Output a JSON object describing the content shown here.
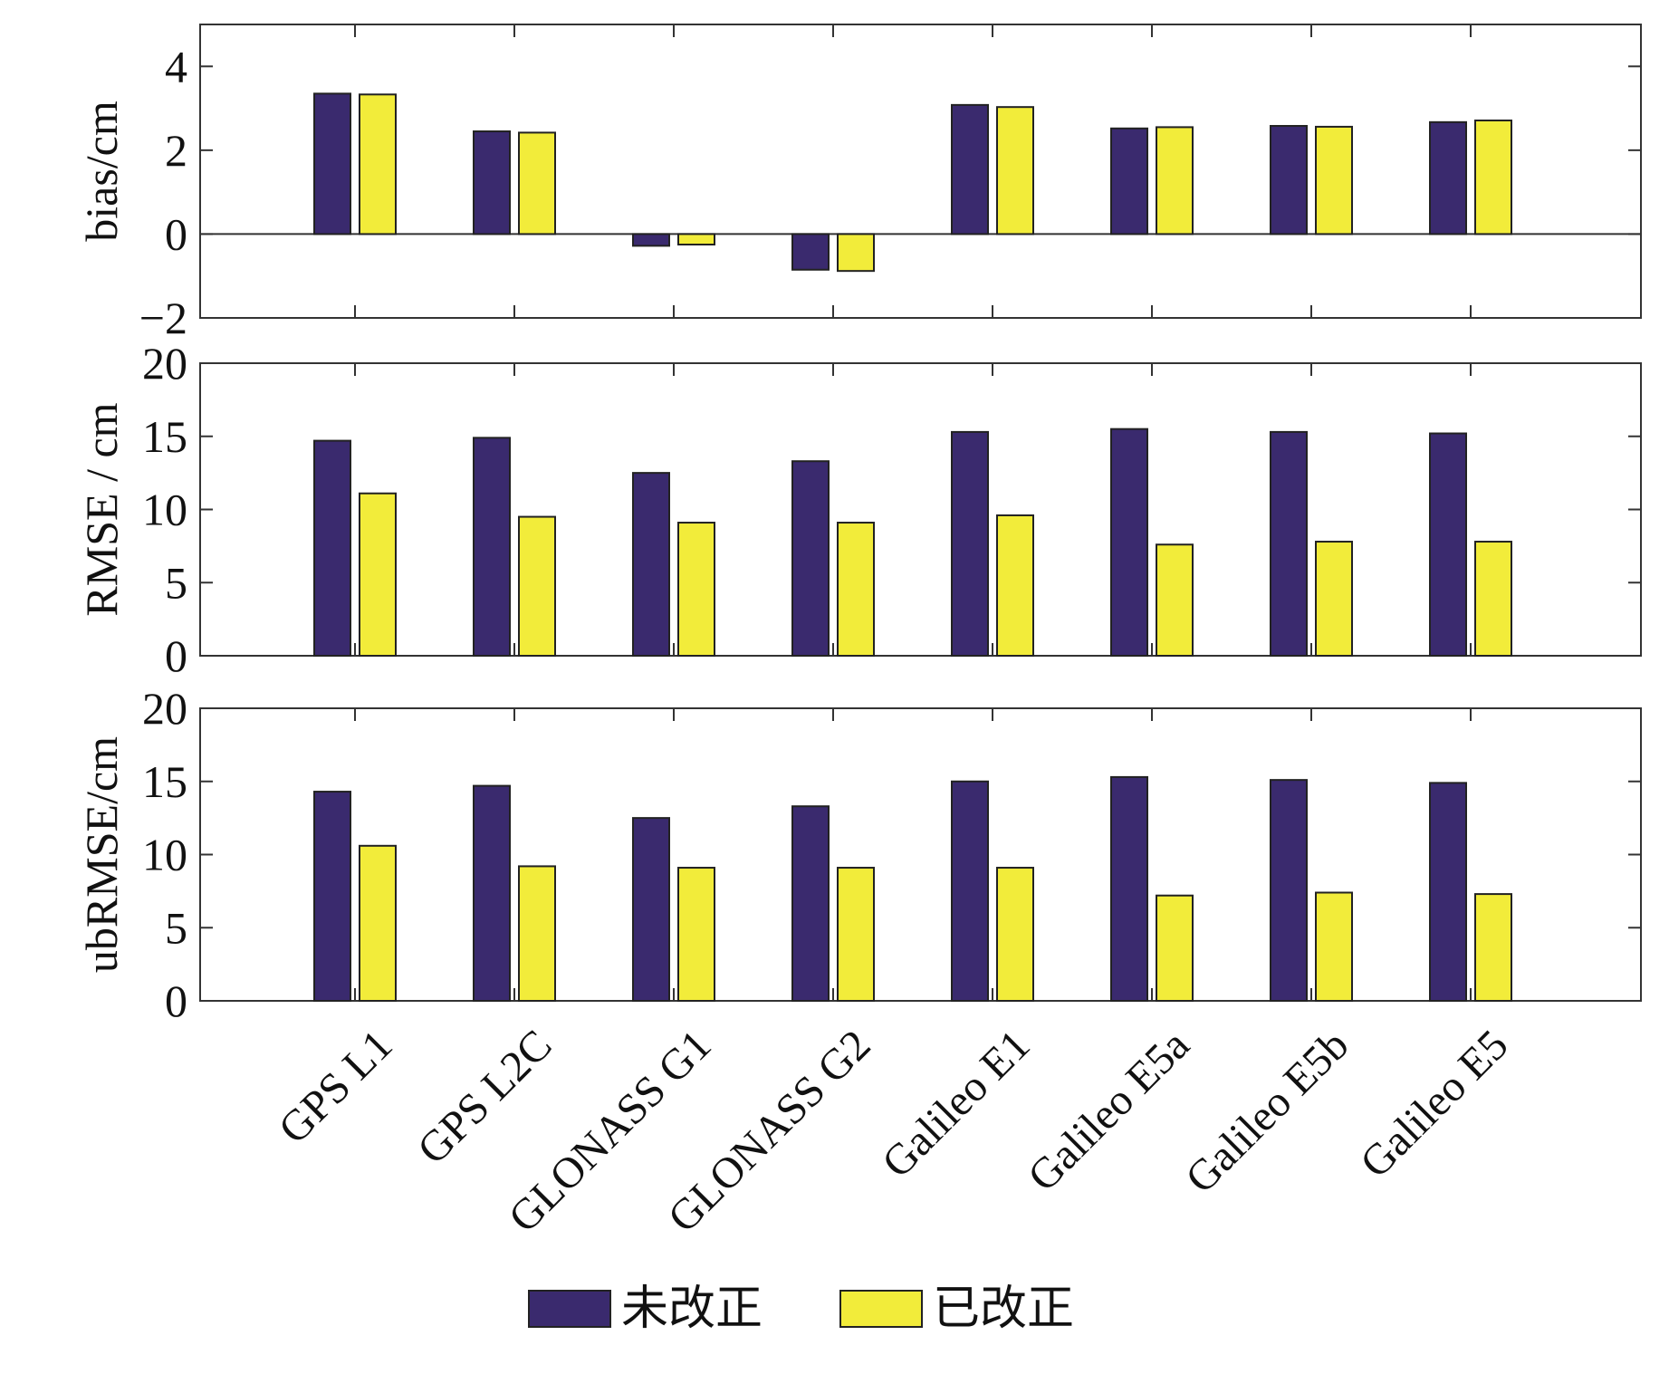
{
  "chart_data": {
    "type": "bar",
    "categories": [
      "GPS L1",
      "GPS L2C",
      "GLONASS G1",
      "GLONASS G2",
      "Galileo E1",
      "Galileo E5a",
      "Galileo E5b",
      "Galileo E5"
    ],
    "series_names": [
      "未改正",
      "已改正"
    ],
    "colors": {
      "uncorrected": "#3a2a6e",
      "corrected": "#f2ec3a",
      "axis": "#333333"
    },
    "legend": {
      "position": "bottom-center",
      "items": [
        "未改正",
        "已改正"
      ]
    },
    "panels": [
      {
        "ylabel": "bias/cm",
        "ylim": [
          -2,
          5
        ],
        "yticks": [
          -2,
          0,
          2,
          4
        ],
        "ytick_labels": [
          "−2",
          "0",
          "2",
          "4"
        ],
        "zero_line": true,
        "series": [
          {
            "name": "未改正",
            "values": [
              3.35,
              2.45,
              -0.28,
              -0.85,
              3.08,
              2.52,
              2.58,
              2.67
            ]
          },
          {
            "name": "已改正",
            "values": [
              3.33,
              2.42,
              -0.25,
              -0.88,
              3.03,
              2.55,
              2.56,
              2.71
            ]
          }
        ]
      },
      {
        "ylabel": "RMSE / cm",
        "ylim": [
          0,
          20
        ],
        "yticks": [
          0,
          5,
          10,
          15,
          20
        ],
        "ytick_labels": [
          "0",
          "5",
          "10",
          "15",
          "20"
        ],
        "zero_line": false,
        "series": [
          {
            "name": "未改正",
            "values": [
              14.7,
              14.9,
              12.5,
              13.3,
              15.3,
              15.5,
              15.3,
              15.2
            ]
          },
          {
            "name": "已改正",
            "values": [
              11.1,
              9.5,
              9.1,
              9.1,
              9.6,
              7.6,
              7.8,
              7.8
            ]
          }
        ]
      },
      {
        "ylabel": "ubRMSE/cm",
        "ylim": [
          0,
          20
        ],
        "yticks": [
          0,
          5,
          10,
          15,
          20
        ],
        "ytick_labels": [
          "0",
          "5",
          "10",
          "15",
          "20"
        ],
        "zero_line": false,
        "series": [
          {
            "name": "未改正",
            "values": [
              14.3,
              14.7,
              12.5,
              13.3,
              15.0,
              15.3,
              15.1,
              14.9
            ]
          },
          {
            "name": "已改正",
            "values": [
              10.6,
              9.2,
              9.1,
              9.1,
              9.1,
              7.2,
              7.4,
              7.3
            ]
          }
        ]
      }
    ]
  }
}
